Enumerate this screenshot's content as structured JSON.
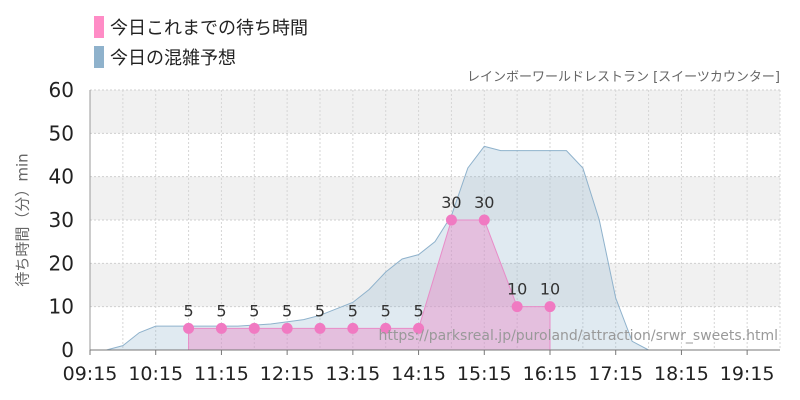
{
  "legend": {
    "actual_label": "今日これまでの待ち時間",
    "actual_color": "#ff8cc6",
    "forecast_label": "今日の混雑予想",
    "forecast_color": "#8fb2cc"
  },
  "subtitle": "レインボーワールドレストラン [スイーツカウンター]",
  "watermark": "https://parksreal.jp/puroland/attraction/srwr_sweets.html",
  "chart_data": {
    "type": "area",
    "ylabel": "待ち時間（分）min",
    "ylim": [
      0,
      60
    ],
    "yticks": [
      0,
      10,
      20,
      30,
      40,
      50,
      60
    ],
    "xticks": [
      "09:15",
      "10:15",
      "11:15",
      "12:15",
      "13:15",
      "14:15",
      "15:15",
      "16:15",
      "17:15",
      "18:15",
      "19:15"
    ],
    "xlim": [
      "09:15",
      "19:45"
    ],
    "grid": true,
    "series": [
      {
        "name": "今日の混雑予想",
        "color": "#8fb2cc",
        "points": [
          [
            "09:15",
            0
          ],
          [
            "09:30",
            0
          ],
          [
            "09:45",
            1
          ],
          [
            "10:00",
            4
          ],
          [
            "10:15",
            5.5
          ],
          [
            "10:30",
            5.5
          ],
          [
            "10:45",
            5.5
          ],
          [
            "11:00",
            5.5
          ],
          [
            "11:30",
            5.5
          ],
          [
            "12:00",
            6
          ],
          [
            "12:30",
            7
          ],
          [
            "12:45",
            8
          ],
          [
            "13:15",
            11
          ],
          [
            "13:30",
            14
          ],
          [
            "13:45",
            18
          ],
          [
            "14:00",
            21
          ],
          [
            "14:15",
            22
          ],
          [
            "14:30",
            25
          ],
          [
            "14:45",
            31
          ],
          [
            "15:00",
            42
          ],
          [
            "15:15",
            47
          ],
          [
            "15:30",
            46
          ],
          [
            "15:45",
            46
          ],
          [
            "16:00",
            46
          ],
          [
            "16:15",
            46
          ],
          [
            "16:30",
            46
          ],
          [
            "16:45",
            42
          ],
          [
            "17:00",
            30
          ],
          [
            "17:15",
            12
          ],
          [
            "17:30",
            2
          ],
          [
            "17:45",
            0
          ],
          [
            "19:45",
            0
          ]
        ]
      },
      {
        "name": "今日これまでの待ち時間",
        "color": "#ff8cc6",
        "points": [
          [
            "10:45",
            5
          ],
          [
            "11:15",
            5
          ],
          [
            "11:45",
            5
          ],
          [
            "12:15",
            5
          ],
          [
            "12:45",
            5
          ],
          [
            "13:15",
            5
          ],
          [
            "13:45",
            5
          ],
          [
            "14:15",
            5
          ],
          [
            "14:45",
            30
          ],
          [
            "15:15",
            30
          ],
          [
            "15:45",
            10
          ],
          [
            "16:15",
            10
          ]
        ],
        "labels": [
          "5",
          "5",
          "5",
          "5",
          "5",
          "5",
          "5",
          "5",
          "30",
          "30",
          "10",
          "10"
        ]
      }
    ]
  }
}
